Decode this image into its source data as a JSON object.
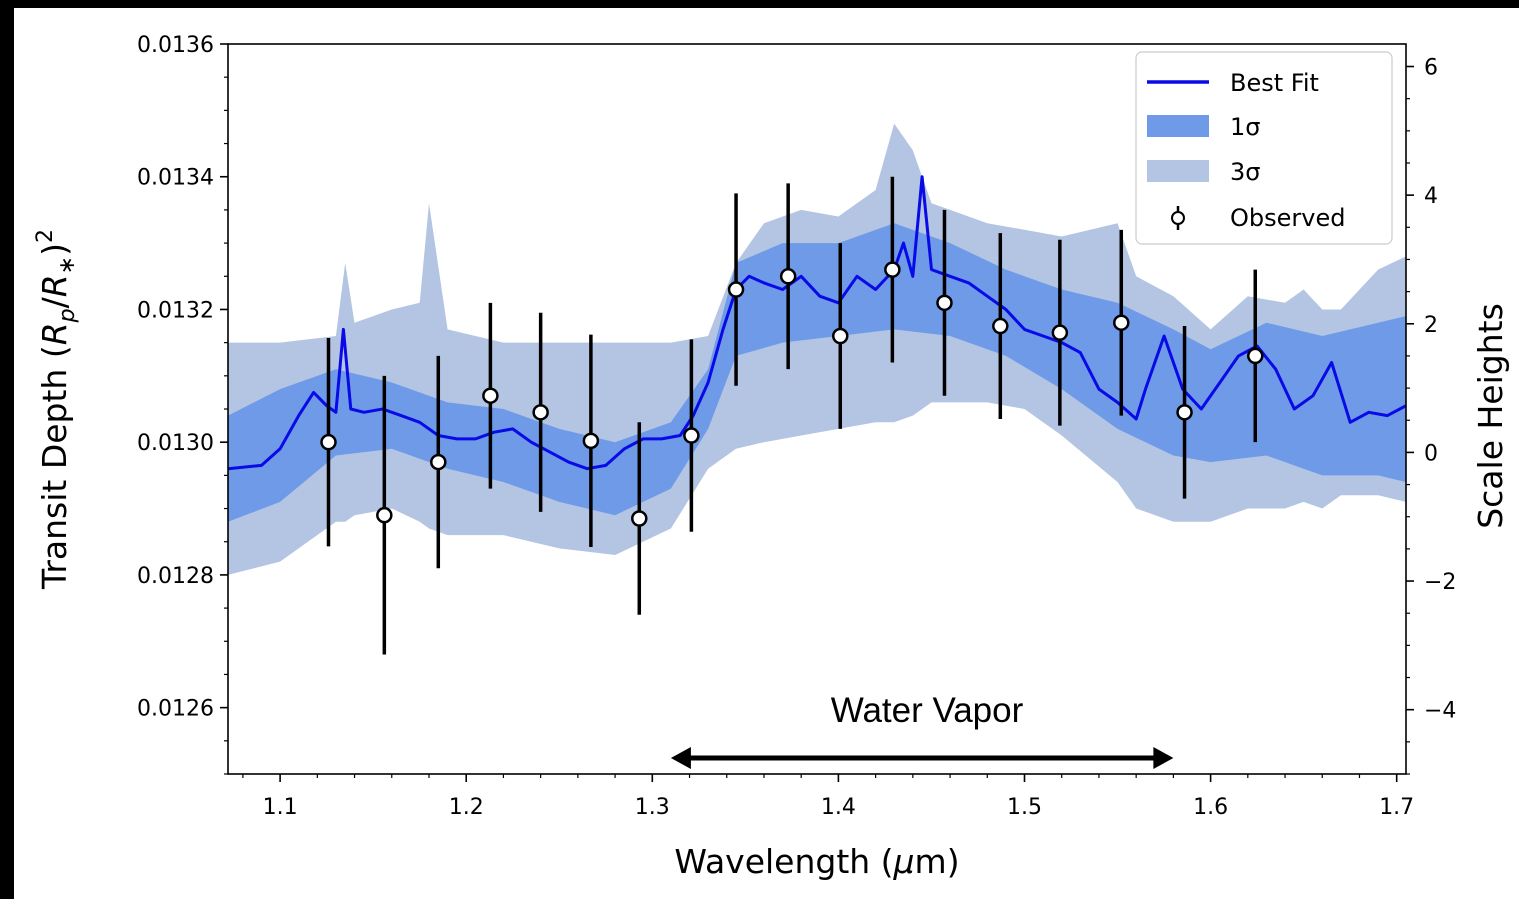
{
  "chart_data": {
    "type": "line",
    "xlabel": "Wavelength (μm)",
    "ylabel": "Transit Depth (R_p/R_*)^2",
    "ylabel_right": "Scale Heights",
    "xlim": [
      1.072,
      1.705
    ],
    "ylim": [
      0.0125,
      0.0136
    ],
    "ylim_right": [
      -5.0,
      6.35
    ],
    "x_ticks": [
      "1.1",
      "1.2",
      "1.3",
      "1.4",
      "1.5",
      "1.6",
      "1.7"
    ],
    "y_ticks": [
      "0.0126",
      "0.0128",
      "0.0130",
      "0.0132",
      "0.0134",
      "0.0136"
    ],
    "y_right_ticks": [
      "−4",
      "−2",
      "0",
      "2",
      "4",
      "6"
    ],
    "legend": {
      "position": "top-right",
      "entries": [
        "Best Fit",
        "1σ",
        "3σ",
        "Observed"
      ]
    },
    "colors": {
      "best_fit": "#0a0ae6",
      "one_sigma": "#6e9ae8",
      "three_sigma": "#b3c5e3",
      "observed_marker": "#ffffff",
      "errorbar": "#000000"
    },
    "annotation": {
      "text": "Water Vapor",
      "x_start": 1.31,
      "x_end": 1.58
    },
    "best_fit": {
      "x": [
        1.072,
        1.09,
        1.1,
        1.11,
        1.118,
        1.125,
        1.13,
        1.134,
        1.138,
        1.145,
        1.155,
        1.165,
        1.175,
        1.185,
        1.195,
        1.205,
        1.215,
        1.225,
        1.235,
        1.245,
        1.255,
        1.265,
        1.275,
        1.285,
        1.295,
        1.305,
        1.315,
        1.322,
        1.33,
        1.338,
        1.345,
        1.352,
        1.36,
        1.37,
        1.38,
        1.39,
        1.4,
        1.41,
        1.42,
        1.43,
        1.435,
        1.44,
        1.445,
        1.45,
        1.46,
        1.47,
        1.48,
        1.49,
        1.5,
        1.51,
        1.52,
        1.53,
        1.54,
        1.55,
        1.56,
        1.565,
        1.575,
        1.585,
        1.595,
        1.605,
        1.615,
        1.625,
        1.635,
        1.645,
        1.655,
        1.665,
        1.675,
        1.685,
        1.695,
        1.705
      ],
      "y": [
        0.01296,
        0.012965,
        0.01299,
        0.01304,
        0.013075,
        0.013055,
        0.013045,
        0.01317,
        0.01305,
        0.013045,
        0.01305,
        0.01304,
        0.01303,
        0.01301,
        0.013005,
        0.013005,
        0.013015,
        0.01302,
        0.013,
        0.012985,
        0.01297,
        0.01296,
        0.012965,
        0.01299,
        0.013005,
        0.013005,
        0.01301,
        0.01304,
        0.01309,
        0.01317,
        0.01323,
        0.01325,
        0.01324,
        0.01323,
        0.01325,
        0.01322,
        0.01321,
        0.01325,
        0.01323,
        0.01326,
        0.0133,
        0.01325,
        0.0134,
        0.01326,
        0.01325,
        0.01324,
        0.01322,
        0.0132,
        0.01317,
        0.01316,
        0.01315,
        0.013135,
        0.01308,
        0.01306,
        0.013035,
        0.01308,
        0.01316,
        0.01308,
        0.01305,
        0.01309,
        0.01313,
        0.013145,
        0.01311,
        0.01305,
        0.01307,
        0.01312,
        0.01303,
        0.013045,
        0.01304,
        0.013055
      ]
    },
    "one_sigma": {
      "x": [
        1.072,
        1.1,
        1.13,
        1.16,
        1.19,
        1.22,
        1.25,
        1.28,
        1.31,
        1.33,
        1.345,
        1.37,
        1.4,
        1.43,
        1.46,
        1.49,
        1.52,
        1.55,
        1.58,
        1.6,
        1.63,
        1.66,
        1.69,
        1.705
      ],
      "upper": [
        0.01304,
        0.01308,
        0.01311,
        0.01309,
        0.01306,
        0.01305,
        0.01302,
        0.013,
        0.01303,
        0.01311,
        0.01327,
        0.0133,
        0.0133,
        0.01333,
        0.0133,
        0.01326,
        0.01323,
        0.01321,
        0.01317,
        0.01314,
        0.01318,
        0.01316,
        0.01318,
        0.01319
      ],
      "lower": [
        0.01288,
        0.01291,
        0.01298,
        0.01299,
        0.01296,
        0.01294,
        0.01291,
        0.01289,
        0.01293,
        0.01302,
        0.01313,
        0.01315,
        0.01316,
        0.01317,
        0.01316,
        0.01313,
        0.01308,
        0.01302,
        0.01298,
        0.01297,
        0.01298,
        0.01295,
        0.01295,
        0.01294
      ]
    },
    "three_sigma": {
      "x": [
        1.072,
        1.1,
        1.13,
        1.135,
        1.14,
        1.16,
        1.175,
        1.18,
        1.19,
        1.22,
        1.25,
        1.28,
        1.31,
        1.33,
        1.345,
        1.36,
        1.38,
        1.4,
        1.42,
        1.43,
        1.44,
        1.45,
        1.46,
        1.48,
        1.5,
        1.52,
        1.55,
        1.56,
        1.58,
        1.6,
        1.62,
        1.64,
        1.65,
        1.66,
        1.67,
        1.69,
        1.705
      ],
      "upper": [
        0.01315,
        0.01315,
        0.01316,
        0.01327,
        0.01318,
        0.0132,
        0.01321,
        0.01336,
        0.01317,
        0.01315,
        0.01315,
        0.01315,
        0.01315,
        0.01316,
        0.01327,
        0.01333,
        0.01335,
        0.01334,
        0.01338,
        0.01348,
        0.01344,
        0.01336,
        0.01335,
        0.01333,
        0.01332,
        0.01331,
        0.01333,
        0.01325,
        0.01322,
        0.01317,
        0.01322,
        0.01321,
        0.01323,
        0.0132,
        0.0132,
        0.01326,
        0.01328
      ],
      "lower": [
        0.0128,
        0.01282,
        0.01288,
        0.01288,
        0.01289,
        0.0129,
        0.01288,
        0.01287,
        0.01286,
        0.01286,
        0.01284,
        0.01283,
        0.01287,
        0.01296,
        0.01299,
        0.013,
        0.01301,
        0.01302,
        0.01303,
        0.01303,
        0.01304,
        0.01306,
        0.01306,
        0.01306,
        0.01305,
        0.01301,
        0.01294,
        0.0129,
        0.01288,
        0.01288,
        0.0129,
        0.0129,
        0.01291,
        0.0129,
        0.01292,
        0.01292,
        0.01291
      ]
    },
    "observed": {
      "x": [
        1.126,
        1.156,
        1.185,
        1.213,
        1.24,
        1.267,
        1.293,
        1.321,
        1.345,
        1.373,
        1.401,
        1.429,
        1.457,
        1.487,
        1.519,
        1.552,
        1.586,
        1.624
      ],
      "y": [
        0.013,
        0.01289,
        0.01297,
        0.01307,
        0.013045,
        0.013002,
        0.012885,
        0.01301,
        0.01323,
        0.01325,
        0.01316,
        0.01326,
        0.01321,
        0.013175,
        0.013165,
        0.01318,
        0.013045,
        0.01313
      ],
      "yerr": [
        0.000157,
        0.00021,
        0.00016,
        0.00014,
        0.00015,
        0.00016,
        0.000145,
        0.000145,
        0.000145,
        0.00014,
        0.00014,
        0.00014,
        0.00014,
        0.00014,
        0.00014,
        0.00014,
        0.00013,
        0.00013
      ]
    }
  }
}
